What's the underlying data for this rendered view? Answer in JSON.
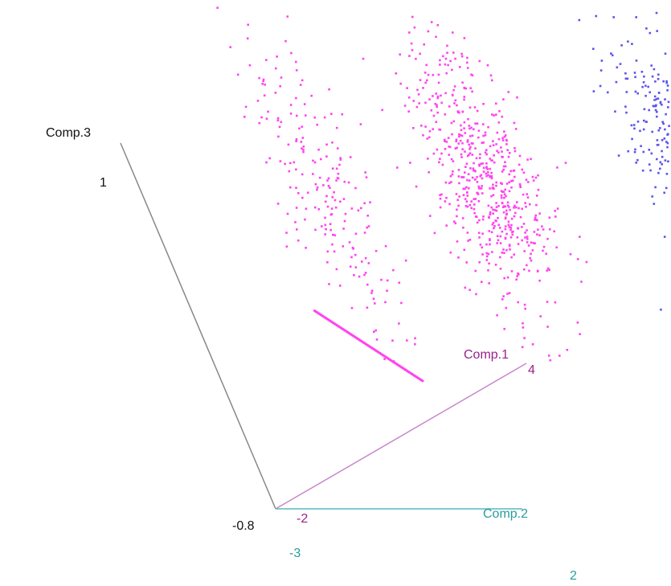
{
  "chart_data": {
    "type": "scatter",
    "dimensions": 3,
    "axes": {
      "x": {
        "label": "Comp.1",
        "ticks": [
          "-2",
          "4"
        ],
        "color": "#99228c"
      },
      "y": {
        "label": "Comp.2",
        "ticks": [
          "-3",
          "2"
        ],
        "color": "#2a9b9b"
      },
      "z": {
        "label": "Comp.3",
        "ticks": [
          "-0.8",
          "1"
        ],
        "color": "#111111"
      }
    },
    "axis_line_colors": {
      "x": "#c888cc",
      "y": "#59b9c0",
      "z": "#888888"
    },
    "clusters": [
      {
        "shape": "elongated cloud",
        "color": "#ff44ee",
        "points": 210,
        "center": [
          0.0,
          -1.4,
          0.55
        ],
        "spread": [
          0.35,
          0.25,
          0.42
        ]
      },
      {
        "shape": "dense cloud",
        "color": "#ff44ee",
        "points": 620,
        "center": [
          2.4,
          -0.6,
          0.3
        ],
        "spread": [
          0.45,
          0.3,
          0.32
        ]
      },
      {
        "shape": "cloud",
        "color": "#5a55ee",
        "points": 400,
        "center": [
          4.4,
          1.5,
          0.18
        ],
        "spread": [
          0.45,
          0.3,
          0.3
        ]
      },
      {
        "shape": "line segment",
        "color": "#ff44ee",
        "points": 140,
        "from": [
          -0.5,
          -2.1,
          0.0
        ],
        "to": [
          1.2,
          -2.3,
          -0.55
        ]
      }
    ],
    "grid": false,
    "legend": "none"
  }
}
